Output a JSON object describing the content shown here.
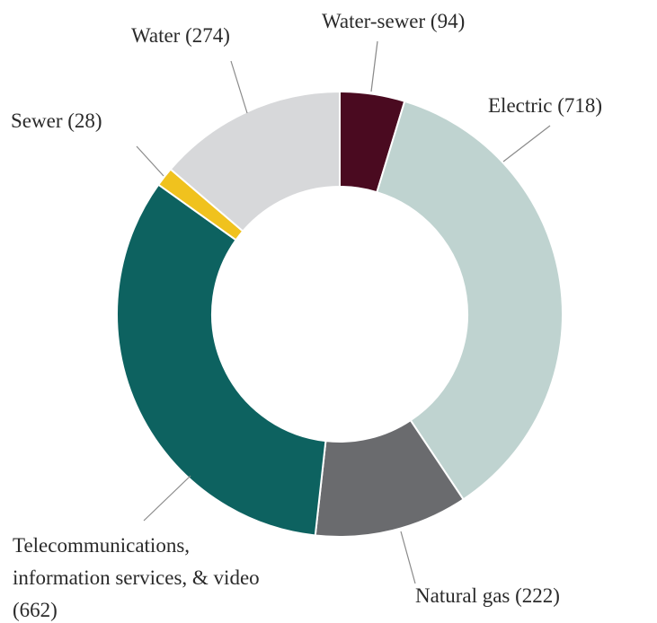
{
  "chart_data": {
    "type": "donut",
    "categories": [
      "Water-sewer",
      "Electric",
      "Natural gas",
      "Telecommunications, information services, & video",
      "Sewer",
      "Water"
    ],
    "values": [
      94,
      718,
      222,
      662,
      28,
      274
    ],
    "value_labels": [
      "(94)",
      "(718)",
      "(222)",
      "(662)",
      "(28)",
      "(274)"
    ],
    "colors": [
      "#4a0a20",
      "#bfd3d0",
      "#6a6b6e",
      "#0d6260",
      "#f0c21e",
      "#d7d8da"
    ]
  }
}
